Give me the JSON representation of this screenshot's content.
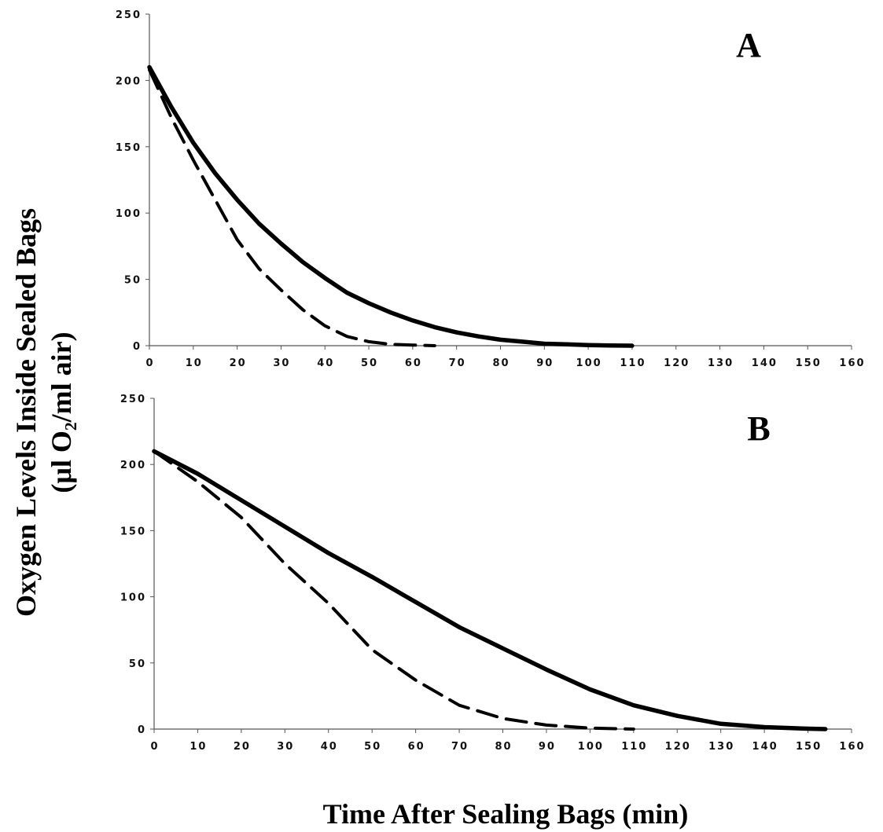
{
  "chart_data": [
    {
      "type": "line",
      "panel_label": "A",
      "xlim": [
        0,
        160
      ],
      "ylim": [
        0,
        250
      ],
      "xticks": [
        0,
        10,
        20,
        30,
        40,
        50,
        60,
        70,
        80,
        90,
        100,
        110,
        120,
        130,
        140,
        150,
        160
      ],
      "yticks": [
        0,
        50,
        100,
        150,
        200,
        250
      ],
      "grid": false,
      "series": [
        {
          "style": "solid",
          "color": "#000000",
          "x": [
            0,
            5,
            10,
            15,
            20,
            25,
            30,
            35,
            40,
            45,
            50,
            55,
            60,
            65,
            70,
            75,
            80,
            85,
            90,
            95,
            100,
            105,
            110
          ],
          "y": [
            210,
            180,
            153,
            130,
            110,
            92,
            77,
            63,
            51,
            40,
            32,
            25,
            19,
            14,
            10,
            7,
            4.5,
            3,
            1.5,
            1,
            0.5,
            0.2,
            0
          ]
        },
        {
          "style": "dashed",
          "color": "#000000",
          "x": [
            0,
            5,
            10,
            15,
            20,
            25,
            30,
            35,
            40,
            45,
            50,
            55,
            60,
            65
          ],
          "y": [
            208,
            172,
            140,
            110,
            80,
            58,
            42,
            27,
            15,
            7,
            3,
            1,
            0.5,
            0
          ]
        }
      ]
    },
    {
      "type": "line",
      "panel_label": "B",
      "xlim": [
        0,
        160
      ],
      "ylim": [
        0,
        250
      ],
      "xticks": [
        0,
        10,
        20,
        30,
        40,
        50,
        60,
        70,
        80,
        90,
        100,
        110,
        120,
        130,
        140,
        150,
        160
      ],
      "yticks": [
        0,
        50,
        100,
        150,
        200,
        250
      ],
      "grid": false,
      "series": [
        {
          "style": "solid",
          "color": "#000000",
          "x": [
            0,
            10,
            20,
            30,
            40,
            50,
            60,
            70,
            80,
            90,
            100,
            110,
            120,
            130,
            140,
            150,
            154
          ],
          "y": [
            210,
            193,
            173,
            153,
            133,
            115,
            96,
            77,
            61,
            45,
            30,
            18,
            10,
            4,
            1.5,
            0.3,
            0
          ]
        },
        {
          "style": "dashed",
          "color": "#000000",
          "x": [
            0,
            10,
            20,
            30,
            40,
            50,
            60,
            70,
            80,
            90,
            100,
            110
          ],
          "y": [
            210,
            187,
            160,
            125,
            95,
            60,
            37,
            18,
            8,
            3,
            0.8,
            0
          ]
        }
      ]
    }
  ],
  "ylabel_line1": "Oxygen Levels Inside Sealed Bags",
  "ylabel_line2": "(μl O₂/ml air)",
  "xlabel": "Time After Sealing Bags (min)"
}
